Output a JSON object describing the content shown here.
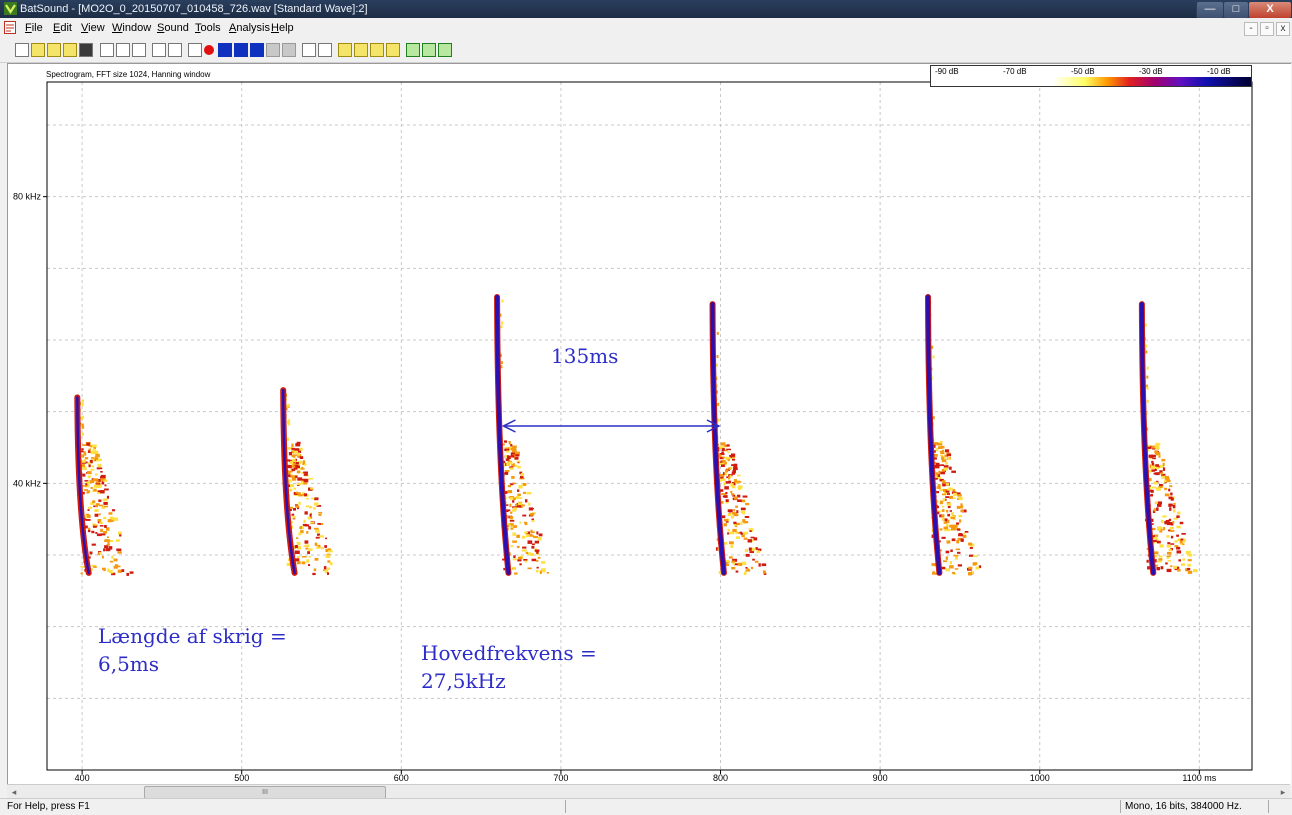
{
  "window": {
    "title": "BatSound - [MO2O_0_20150707_010458_726.wav [Standard Wave]:2]",
    "minimize": "—",
    "maximize": "□",
    "close": "X"
  },
  "menu": {
    "items": [
      "File",
      "Edit",
      "View",
      "Window",
      "Sound",
      "Tools",
      "Analysis",
      "Help"
    ],
    "mdi": [
      "-",
      "▫",
      "x"
    ]
  },
  "plot": {
    "title": "Spectrogram, FFT size 1024, Hanning window"
  },
  "colorbar": {
    "labels": [
      "-90 dB",
      "-70 dB",
      "-50 dB",
      "-30 dB",
      "-10 dB"
    ]
  },
  "chart_data": {
    "type": "heatmap",
    "title": "Spectrogram, FFT size 1024, Hanning window",
    "x_unit": "ms",
    "y_unit": "kHz",
    "xlim": [
      378,
      1133
    ],
    "ylim": [
      0,
      96
    ],
    "x_ticks": [
      "400",
      "500",
      "600",
      "700",
      "800",
      "900",
      "1000",
      "1100 ms"
    ],
    "x_tick_values": [
      400,
      500,
      600,
      700,
      800,
      900,
      1000,
      1100
    ],
    "y_ticks": [
      "40 kHz",
      "80 kHz"
    ],
    "y_tick_values": [
      40,
      80
    ],
    "y_gridlines": [
      10,
      20,
      30,
      40,
      50,
      60,
      70,
      80,
      90
    ],
    "grid": true,
    "calls": [
      {
        "start_ms": 397,
        "duration_ms": 6.5,
        "f_start_khz": 52,
        "f_end_khz": 27.5
      },
      {
        "start_ms": 526,
        "duration_ms": 6.5,
        "f_start_khz": 53,
        "f_end_khz": 27.5
      },
      {
        "start_ms": 660,
        "duration_ms": 6.5,
        "f_start_khz": 66,
        "f_end_khz": 27.5
      },
      {
        "start_ms": 795,
        "duration_ms": 6.5,
        "f_start_khz": 65,
        "f_end_khz": 27.5
      },
      {
        "start_ms": 930,
        "duration_ms": 6.5,
        "f_start_khz": 66,
        "f_end_khz": 27.5
      },
      {
        "start_ms": 1064,
        "duration_ms": 6.5,
        "f_start_khz": 65,
        "f_end_khz": 27.5
      }
    ],
    "interval_marker": {
      "from_ms": 664,
      "to_ms": 799,
      "freq_khz": 48
    }
  },
  "annotations": {
    "interval": "135ms",
    "call_length_line1": "Længde af skrig =",
    "call_length_line2": "6,5ms",
    "main_freq_line1": "Hovedfrekvens =",
    "main_freq_line2": "27,5kHz"
  },
  "scrollbar": {
    "thumb_grip": "III",
    "left_arrow": "◂",
    "right_arrow": "▸"
  },
  "status": {
    "help": "For Help, press F1",
    "format": "Mono, 16 bits, 384000 Hz."
  },
  "colors": {
    "annotation": "#2d2dc8",
    "call_core": "#2a10b0",
    "call_red": "#d01c10",
    "call_orange": "#f59a10",
    "call_yellow": "#ffe040"
  }
}
